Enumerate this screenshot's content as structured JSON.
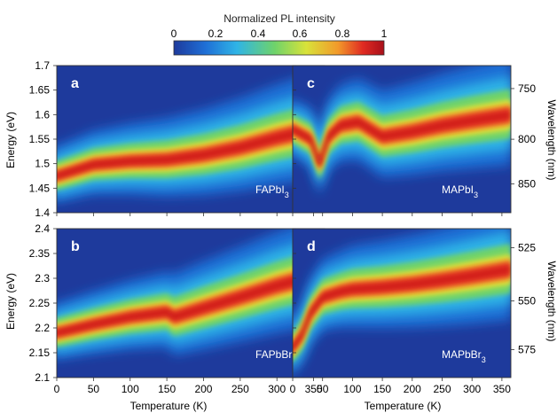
{
  "colorbar": {
    "label": "Normalized PL intensity",
    "ticks": [
      "0",
      "0.2",
      "0.4",
      "0.6",
      "0.8",
      "1"
    ],
    "range": [
      0,
      1
    ],
    "colormap": "jet",
    "colors": [
      "#1e3a9c",
      "#1f6fd6",
      "#2fb4e6",
      "#6fd36a",
      "#d8e23a",
      "#f29a2a",
      "#e02a22",
      "#a8101a"
    ]
  },
  "x_axis": {
    "label": "Temperature (K)",
    "ticks": [
      "0",
      "50",
      "100",
      "150",
      "200",
      "250",
      "300",
      "350"
    ],
    "range": [
      0,
      365
    ]
  },
  "chart_data": [
    {
      "type": "heatmap",
      "panel_label": "a",
      "material": {
        "base": "FAPbI",
        "sub": "3"
      },
      "ylabel": "Energy (eV)",
      "ylim": [
        1.4,
        1.7
      ],
      "yticks": [
        "1.4",
        "1.45",
        "1.5",
        "1.55",
        "1.6",
        "1.65",
        "1.7"
      ],
      "xlim": [
        0,
        365
      ],
      "peak": {
        "x": [
          0,
          50,
          100,
          150,
          200,
          250,
          300,
          365
        ],
        "y": [
          1.475,
          1.498,
          1.505,
          1.508,
          1.518,
          1.533,
          1.553,
          1.575
        ]
      }
    },
    {
      "type": "heatmap",
      "panel_label": "c",
      "material": {
        "base": "MAPbI",
        "sub": "3"
      },
      "ylabel2": "Wavelength (nm)",
      "ylim": [
        1.4,
        1.7
      ],
      "y2ticks": [
        "750",
        "800",
        "850"
      ],
      "xlim": [
        0,
        365
      ],
      "peak": {
        "x": [
          0,
          30,
          45,
          60,
          80,
          110,
          150,
          200,
          250,
          300,
          365
        ],
        "y": [
          1.57,
          1.55,
          1.5,
          1.555,
          1.578,
          1.585,
          1.555,
          1.565,
          1.578,
          1.588,
          1.6
        ]
      }
    },
    {
      "type": "heatmap",
      "panel_label": "b",
      "material": {
        "base": "FAPbBr",
        "sub": "3"
      },
      "ylabel": "Energy (eV)",
      "ylim": [
        2.1,
        2.4
      ],
      "yticks": [
        "2.1",
        "2.15",
        "2.2",
        "2.25",
        "2.3",
        "2.35",
        "2.4"
      ],
      "xlim": [
        0,
        365
      ],
      "peak": {
        "x": [
          0,
          50,
          100,
          150,
          160,
          200,
          250,
          300,
          365
        ],
        "y": [
          2.19,
          2.207,
          2.222,
          2.232,
          2.222,
          2.24,
          2.262,
          2.285,
          2.31
        ]
      }
    },
    {
      "type": "heatmap",
      "panel_label": "d",
      "material": {
        "base": "MAPbBr",
        "sub": "3"
      },
      "ylabel2": "Wavelength (nm)",
      "ylim": [
        2.1,
        2.4
      ],
      "y2ticks": [
        "525",
        "550",
        "575"
      ],
      "xlim": [
        0,
        365
      ],
      "peak": {
        "x": [
          0,
          15,
          30,
          50,
          80,
          100,
          150,
          200,
          250,
          300,
          365
        ],
        "y": [
          2.16,
          2.185,
          2.23,
          2.262,
          2.273,
          2.278,
          2.282,
          2.288,
          2.296,
          2.305,
          2.318
        ]
      }
    }
  ]
}
